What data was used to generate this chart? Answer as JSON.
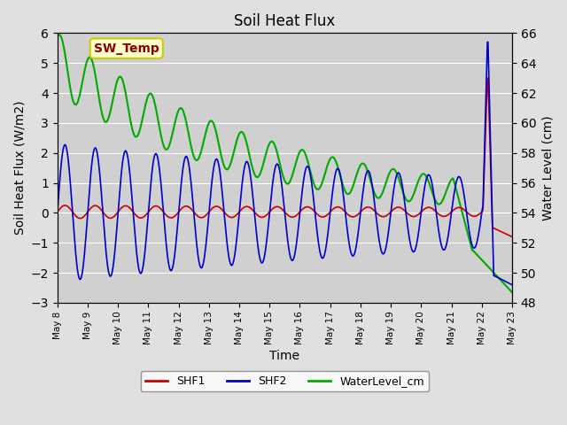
{
  "title": "Soil Heat Flux",
  "ylabel_left": "Soil Heat Flux (W/m2)",
  "ylabel_right": "Water Level (cm)",
  "xlabel": "Time",
  "ylim_left": [
    -3.0,
    6.0
  ],
  "ylim_right": [
    48,
    66
  ],
  "background_color": "#e0e0e0",
  "plot_bg_color": "#d0d0d0",
  "grid_color": "#ffffff",
  "legend_items": [
    "SHF1",
    "SHF2",
    "WaterLevel_cm"
  ],
  "legend_colors": [
    "#cc0000",
    "#0000cc",
    "#00aa00"
  ],
  "annotation_text": "SW_Temp",
  "annotation_box_color": "#ffffcc",
  "annotation_text_color": "#8b0000",
  "annotation_border_color": "#cccc00",
  "x_tick_labels": [
    "May 8",
    "May 9",
    "May 10",
    "May 11",
    "May 12",
    "May 13",
    "May 14",
    "May 15",
    "May 16",
    "May 17",
    "May 18",
    "May 19",
    "May 20",
    "May 21",
    "May 22",
    "May 23"
  ],
  "yticks_left": [
    -3.0,
    -2.0,
    -1.0,
    0.0,
    1.0,
    2.0,
    3.0,
    4.0,
    5.0,
    6.0
  ],
  "yticks_right": [
    48,
    50,
    52,
    54,
    56,
    58,
    60,
    62,
    64,
    66
  ]
}
